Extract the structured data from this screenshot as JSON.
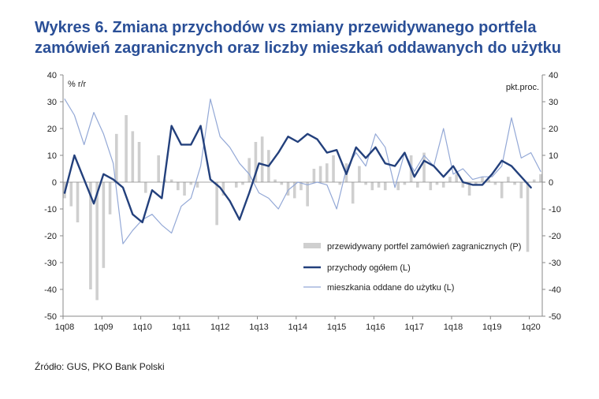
{
  "title_line1": "Wykres 6. Zmiana przychodów vs zmiany przewidywanego portfela",
  "title_line2": "zamówień zagranicznych oraz liczby mieszkań oddawanych do użytku",
  "source": "Źródło: GUS, PKO Bank Polski",
  "chart_data": {
    "type": "bar+line",
    "left_axis_unit": "% r/r",
    "right_axis_unit": "pkt.proc.",
    "ylim_left": [
      -50,
      40
    ],
    "ylim_right": [
      -50,
      40
    ],
    "y_ticks": [
      40,
      30,
      20,
      10,
      0,
      -10,
      -20,
      -30,
      -40,
      -50
    ],
    "x_ticks": [
      "1q08",
      "1q09",
      "1q10",
      "1q11",
      "1q12",
      "1q13",
      "1q14",
      "1q15",
      "1q16",
      "1q17",
      "1q18",
      "1q19",
      "1q20"
    ],
    "n_months": 148,
    "colors": {
      "bars": "#cfcfcf",
      "revenue": "#23407c",
      "housing": "#93a8d6",
      "axis": "#888888"
    },
    "series": [
      {
        "name": "przewidywany portfel zamówień zagranicznych (P)",
        "type": "bar",
        "axis": "right",
        "x": [
          0,
          2,
          4,
          8,
          10,
          12,
          14,
          16,
          19,
          21,
          23,
          25,
          29,
          31,
          33,
          35,
          37,
          39,
          41,
          47,
          49,
          53,
          55,
          57,
          59,
          61,
          63,
          65,
          67,
          69,
          71,
          73,
          75,
          77,
          79,
          81,
          83,
          85,
          87,
          89,
          91,
          93,
          95,
          97,
          99,
          101,
          103,
          105,
          107,
          109,
          111,
          113,
          115,
          117,
          119,
          121,
          123,
          125,
          127,
          129,
          131,
          133,
          135,
          137,
          139,
          141,
          143,
          145,
          147
        ],
        "values": [
          -6,
          -9,
          -15,
          -40,
          -44,
          -32,
          -12,
          18,
          25,
          19,
          15,
          -4,
          10,
          1,
          1,
          -3,
          -5,
          -1,
          -2,
          -16,
          -5,
          -2,
          -1,
          9,
          15,
          17,
          12,
          1,
          -1,
          -5,
          -6,
          -3,
          -9,
          5,
          6,
          7,
          10,
          -1,
          7,
          -8,
          6,
          -1,
          -3,
          -2,
          -3,
          0,
          -3,
          -1,
          10,
          -2,
          11,
          -3,
          -1,
          -2,
          2,
          3,
          -2,
          -5,
          -1,
          2,
          1,
          -1,
          -6,
          2,
          -1,
          -6,
          -26,
          1,
          3
        ]
      },
      {
        "name": "przychody ogółem (L)",
        "type": "line",
        "axis": "left",
        "x": [
          0,
          3,
          6,
          9,
          12,
          15,
          18,
          21,
          24,
          27,
          30,
          33,
          36,
          39,
          42,
          45,
          48,
          51,
          54,
          57,
          60,
          63,
          66,
          69,
          72,
          75,
          78,
          81,
          84,
          87,
          90,
          93,
          96,
          99,
          102,
          105,
          108,
          111,
          114,
          117,
          120,
          123,
          126,
          129,
          132,
          135,
          138,
          141,
          144
        ],
        "values": [
          -4,
          10,
          1,
          -8,
          3,
          1,
          -2,
          -12,
          -15,
          -3,
          -6,
          21,
          14,
          14,
          21,
          1,
          -2,
          -7,
          -14,
          -4,
          7,
          6,
          11,
          17,
          15,
          18,
          16,
          11,
          12,
          3,
          13,
          9,
          13,
          7,
          6,
          11,
          2,
          8,
          6,
          2,
          6,
          0,
          -1,
          -1,
          3,
          8,
          6,
          2,
          -2
        ]
      },
      {
        "name": "mieszkania oddane do użytku (L)",
        "type": "line",
        "axis": "left",
        "x": [
          0,
          3,
          6,
          9,
          12,
          15,
          18,
          21,
          24,
          27,
          30,
          33,
          36,
          39,
          42,
          45,
          48,
          51,
          54,
          57,
          60,
          63,
          66,
          69,
          72,
          75,
          78,
          81,
          84,
          87,
          90,
          93,
          96,
          99,
          102,
          105,
          108,
          111,
          114,
          117,
          120,
          123,
          126,
          129,
          132,
          135,
          138,
          141,
          144,
          147
        ],
        "values": [
          31,
          25,
          14,
          26,
          18,
          7,
          -23,
          -18,
          -14,
          -12,
          -16,
          -19,
          -9,
          -6,
          6,
          31,
          17,
          13,
          7,
          3,
          -4,
          -6,
          -10,
          -3,
          0,
          -1,
          0,
          -1,
          -10,
          5,
          11,
          6,
          18,
          13,
          -2,
          11,
          4,
          10,
          6,
          20,
          3,
          5,
          1,
          2,
          2,
          6,
          24,
          9,
          11,
          4
        ]
      }
    ]
  }
}
